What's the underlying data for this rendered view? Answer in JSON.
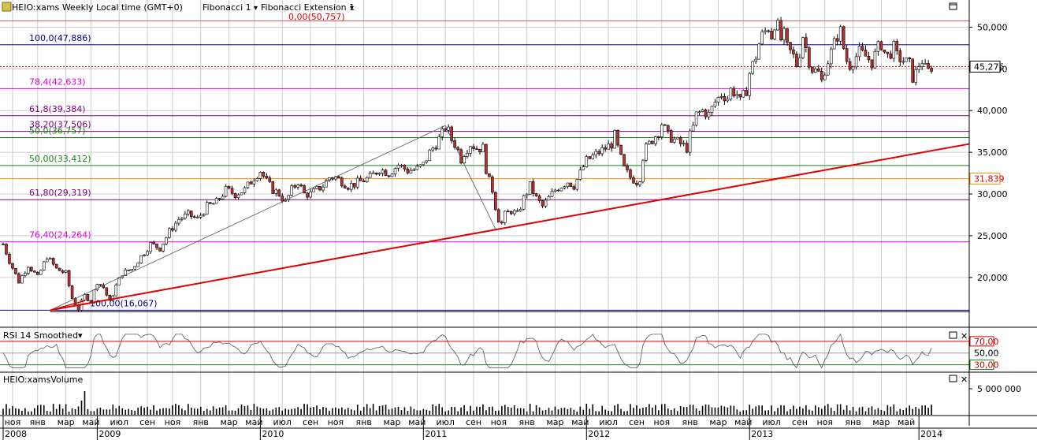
{
  "header": {
    "symbol": "HEIO:xams Weekly Local time (GMT+0)",
    "tool1": "Fibonacci 1",
    "tool2": "Fibonacci Extension 1",
    "ext_top": "0,00(50,757)"
  },
  "colors": {
    "up": "#ffffff",
    "down": "#c0312b",
    "trend": "#e00000",
    "grid": "#cccccc",
    "fib_blue": "#00008b",
    "fib_magenta": "#e000e0",
    "fib_green": "#1a7f1a",
    "fib_purple": "#800080",
    "orange": "#ff8c00"
  },
  "chart_data": {
    "type": "candlestick",
    "ylim": [
      14500,
      52500
    ],
    "yticks": [
      "50,000",
      "45,000",
      "40,000",
      "35,000",
      "30,000",
      "25,000",
      "20,000"
    ],
    "yticks_values": [
      50000,
      45000,
      40000,
      35000,
      30000,
      25000,
      20000
    ],
    "last_price": "45,275",
    "level_price": "31,839",
    "fib_levels": [
      {
        "label": "100,0(47,886)",
        "value": 47886,
        "color": "fib_blue"
      },
      {
        "label": "78,4(42,633)",
        "value": 42633,
        "color": "fib_magenta"
      },
      {
        "label": "61,8(39,384)",
        "value": 39384,
        "color": "fib_purple"
      },
      {
        "label": "38,20(37,506)",
        "value": 37506,
        "color": "fib_purple"
      },
      {
        "label": "50,0(36,757)",
        "value": 36757,
        "color": "fib_green"
      },
      {
        "label": "50,00(33,412)",
        "value": 33412,
        "color": "fib_green"
      },
      {
        "label": "61,80(29,319)",
        "value": 29319,
        "color": "fib_purple"
      },
      {
        "label": "76,40(24,264)",
        "value": 24264,
        "color": "fib_magenta"
      },
      {
        "label": "100,00(16,067)",
        "value": 16067,
        "color": "fib_blue"
      }
    ],
    "price_path": [
      [
        0,
        24000
      ],
      [
        2,
        22000
      ],
      [
        5,
        19500
      ],
      [
        8,
        21500
      ],
      [
        11,
        20000
      ],
      [
        14,
        22500
      ],
      [
        17,
        21000
      ],
      [
        20,
        20500
      ],
      [
        22,
        17500
      ],
      [
        24,
        16200
      ],
      [
        26,
        17800
      ],
      [
        28,
        17200
      ],
      [
        30,
        19500
      ],
      [
        32,
        18800
      ],
      [
        34,
        17000
      ],
      [
        36,
        19000
      ],
      [
        38,
        20500
      ],
      [
        41,
        21000
      ],
      [
        44,
        22500
      ],
      [
        47,
        24000
      ],
      [
        50,
        23500
      ],
      [
        53,
        25500
      ],
      [
        56,
        27000
      ],
      [
        59,
        27500
      ],
      [
        62,
        27000
      ],
      [
        65,
        28500
      ],
      [
        68,
        29000
      ],
      [
        71,
        30500
      ],
      [
        74,
        30000
      ],
      [
        77,
        30500
      ],
      [
        80,
        32000
      ],
      [
        82,
        32800
      ],
      [
        84,
        31500
      ],
      [
        86,
        30500
      ],
      [
        88,
        30000
      ],
      [
        90,
        29000
      ],
      [
        92,
        30500
      ],
      [
        94,
        31500
      ],
      [
        96,
        30000
      ],
      [
        98,
        30000
      ],
      [
        100,
        30500
      ],
      [
        102,
        31000
      ],
      [
        104,
        32000
      ],
      [
        106,
        32000
      ],
      [
        108,
        31500
      ],
      [
        110,
        31000
      ],
      [
        112,
        31200
      ],
      [
        114,
        31500
      ],
      [
        117,
        32000
      ],
      [
        120,
        33000
      ],
      [
        123,
        32500
      ],
      [
        126,
        33500
      ],
      [
        129,
        32800
      ],
      [
        132,
        33000
      ],
      [
        134,
        33500
      ],
      [
        136,
        35000
      ],
      [
        138,
        36000
      ],
      [
        140,
        37200
      ],
      [
        141,
        38000
      ],
      [
        142,
        37500
      ],
      [
        143,
        36500
      ],
      [
        144,
        36000
      ],
      [
        145,
        35200
      ],
      [
        146,
        34200
      ],
      [
        147,
        35000
      ],
      [
        149,
        36000
      ],
      [
        151,
        35500
      ],
      [
        153,
        35500
      ],
      [
        154,
        33000
      ],
      [
        155,
        31500
      ],
      [
        156,
        30500
      ],
      [
        157,
        28500
      ],
      [
        158,
        27000
      ],
      [
        159,
        26500
      ],
      [
        160,
        27500
      ],
      [
        162,
        28000
      ],
      [
        164,
        27500
      ],
      [
        166,
        29500
      ],
      [
        168,
        31000
      ],
      [
        170,
        29500
      ],
      [
        172,
        28500
      ],
      [
        174,
        29500
      ],
      [
        176,
        30500
      ],
      [
        178,
        31000
      ],
      [
        180,
        31500
      ],
      [
        182,
        31000
      ],
      [
        184,
        32500
      ],
      [
        186,
        34000
      ],
      [
        188,
        34500
      ],
      [
        190,
        35000
      ],
      [
        192,
        35500
      ],
      [
        194,
        36000
      ],
      [
        195,
        37000
      ],
      [
        196,
        35500
      ],
      [
        198,
        33000
      ],
      [
        200,
        32000
      ],
      [
        202,
        31500
      ],
      [
        203,
        32000
      ],
      [
        204,
        34500
      ],
      [
        205,
        35500
      ],
      [
        207,
        36500
      ],
      [
        209,
        37500
      ],
      [
        210,
        38500
      ],
      [
        212,
        37000
      ],
      [
        214,
        36500
      ],
      [
        216,
        36000
      ],
      [
        218,
        35500
      ],
      [
        219,
        37000
      ],
      [
        220,
        38000
      ],
      [
        221,
        39500
      ],
      [
        223,
        40000
      ],
      [
        225,
        39500
      ],
      [
        227,
        41000
      ],
      [
        229,
        42000
      ],
      [
        231,
        41500
      ],
      [
        232,
        42500
      ],
      [
        234,
        42000
      ],
      [
        235,
        41000
      ],
      [
        237,
        42500
      ],
      [
        238,
        44500
      ],
      [
        239,
        45500
      ],
      [
        240,
        46500
      ],
      [
        241,
        48000
      ],
      [
        242,
        49000
      ],
      [
        243,
        49500
      ],
      [
        244,
        50000
      ],
      [
        245,
        49000
      ],
      [
        246,
        50500
      ],
      [
        247,
        50000
      ],
      [
        248,
        48500
      ],
      [
        249,
        49000
      ],
      [
        250,
        47500
      ],
      [
        252,
        46500
      ],
      [
        253,
        45500
      ],
      [
        254,
        47000
      ],
      [
        255,
        49000
      ],
      [
        256,
        47500
      ],
      [
        257,
        46000
      ],
      [
        258,
        45000
      ],
      [
        260,
        44500
      ],
      [
        261,
        43500
      ],
      [
        262,
        45000
      ],
      [
        264,
        47000
      ],
      [
        265,
        48000
      ],
      [
        266,
        49000
      ],
      [
        267,
        49500
      ],
      [
        268,
        47500
      ],
      [
        269,
        46000
      ],
      [
        270,
        45500
      ],
      [
        271,
        46000
      ],
      [
        273,
        47000
      ],
      [
        275,
        46500
      ],
      [
        277,
        45800
      ],
      [
        279,
        47500
      ],
      [
        280,
        48000
      ],
      [
        281,
        47000
      ],
      [
        282,
        46500
      ],
      [
        284,
        47500
      ],
      [
        285,
        46500
      ],
      [
        287,
        46000
      ],
      [
        289,
        45500
      ],
      [
        290,
        44000
      ],
      [
        291,
        44500
      ],
      [
        292,
        45500
      ],
      [
        293,
        46000
      ],
      [
        294,
        45000
      ],
      [
        295,
        44700
      ],
      [
        296,
        45275
      ]
    ],
    "x_labels": [
      {
        "label": "ноя",
        "week": 3
      },
      {
        "label": "янв",
        "week": 11
      },
      {
        "label": "мар",
        "week": 20
      },
      {
        "label": "май",
        "week": 28
      },
      {
        "label": "июл",
        "week": 37
      },
      {
        "label": "сен",
        "week": 46
      },
      {
        "label": "ноя",
        "week": 54
      },
      {
        "label": "янв",
        "week": 63
      },
      {
        "label": "мар",
        "week": 72
      },
      {
        "label": "май",
        "week": 80
      },
      {
        "label": "июл",
        "week": 89
      },
      {
        "label": "сен",
        "week": 98
      },
      {
        "label": "ноя",
        "week": 106
      },
      {
        "label": "янв",
        "week": 115
      },
      {
        "label": "мар",
        "week": 124
      },
      {
        "label": "май",
        "week": 132
      },
      {
        "label": "июл",
        "week": 141
      },
      {
        "label": "сен",
        "week": 150
      },
      {
        "label": "ноя",
        "week": 158
      },
      {
        "label": "янв",
        "week": 167
      },
      {
        "label": "мар",
        "week": 176
      },
      {
        "label": "май",
        "week": 184
      },
      {
        "label": "июл",
        "week": 193
      },
      {
        "label": "сен",
        "week": 202
      },
      {
        "label": "ноя",
        "week": 210
      },
      {
        "label": "янв",
        "week": 219
      },
      {
        "label": "мар",
        "week": 228
      },
      {
        "label": "май",
        "week": 236
      },
      {
        "label": "июл",
        "week": 245
      },
      {
        "label": "сен",
        "week": 254
      },
      {
        "label": "ноя",
        "week": 262
      },
      {
        "label": "янв",
        "week": 271
      },
      {
        "label": "мар",
        "week": 280
      },
      {
        "label": "май",
        "week": 288
      }
    ],
    "years": [
      {
        "label": "2008",
        "week": 0
      },
      {
        "label": "2009",
        "week": 30
      },
      {
        "label": "2010",
        "week": 82
      },
      {
        "label": "2011",
        "week": 134
      },
      {
        "label": "2012",
        "week": 186
      },
      {
        "label": "2013",
        "week": 238
      },
      {
        "label": "2014",
        "week": 292
      }
    ],
    "rsi": {
      "title": "RSI 14 Smoothed",
      "levels": [
        "70,00",
        "50,00",
        "30,00"
      ]
    },
    "volume": {
      "title": "HEIO:xamsVolume",
      "tick": "5 000 000"
    }
  }
}
